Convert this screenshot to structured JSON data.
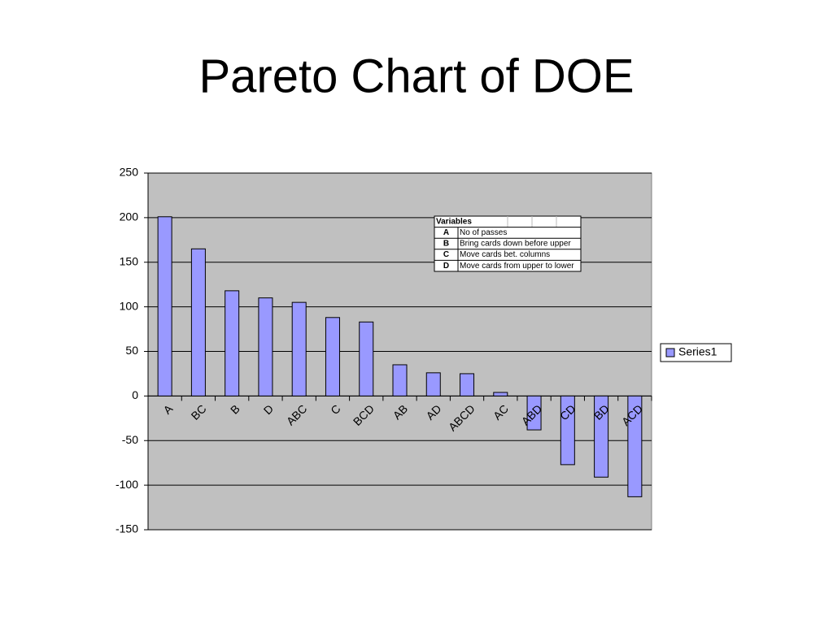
{
  "chart_data": {
    "type": "bar",
    "title": "Pareto Chart of DOE",
    "categories": [
      "A",
      "BC",
      "B",
      "D",
      "ABC",
      "C",
      "BCD",
      "AB",
      "AD",
      "ABCD",
      "AC",
      "ABD",
      "CD",
      "BD",
      "ACD"
    ],
    "series": [
      {
        "name": "Series1",
        "color": "#9999ff",
        "values": [
          201,
          165,
          118,
          110,
          105,
          88,
          83,
          35,
          26,
          25,
          4,
          -38,
          -77,
          -91,
          -113
        ]
      }
    ],
    "ylim": [
      -150,
      250
    ],
    "yticks": [
      -150,
      -100,
      -50,
      0,
      50,
      100,
      150,
      200,
      250
    ],
    "grid": true,
    "legend": "right",
    "annotation_table": {
      "title": "Variables",
      "rows": [
        [
          "A",
          "No of passes"
        ],
        [
          "B",
          "Bring cards down before upper"
        ],
        [
          "C",
          "Move cards bet. columns"
        ],
        [
          "D",
          "Move cards from upper to lower"
        ]
      ]
    }
  }
}
